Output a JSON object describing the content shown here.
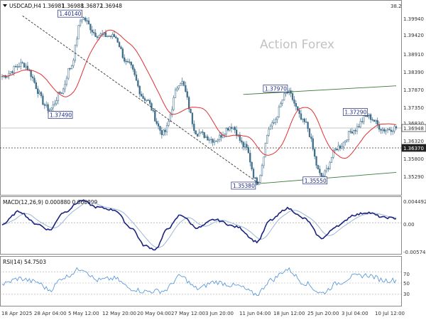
{
  "chart_data": [
    {
      "type": "candlestick",
      "title": "USDCAD,H4",
      "header_values": [
        "1.36981",
        "1.36988",
        "1.36872",
        "1.36948"
      ],
      "watermark": "Action Forex",
      "corner_value": "38.2",
      "price_ticks": [
        "1.39940",
        "1.39420",
        "1.38910",
        "1.38390",
        "1.37870",
        "1.37350",
        "1.36830",
        "1.36320",
        "1.35800",
        "1.35290"
      ],
      "price_ticks_mirror": [
        "1.39940",
        "1.39420",
        "1.38910",
        "1.38390",
        "1.37870",
        "1.37350",
        "1.36830",
        "1.36320",
        "1.35800",
        "1.35290"
      ],
      "ylim": [
        1.3505,
        1.4035
      ],
      "current_price": "1.36948",
      "current_price_value": 1.36948,
      "hline_label": "1.36370",
      "hline_value": 1.3637,
      "annotations": [
        {
          "text": "1.40140",
          "value": 1.4014,
          "bar": 47
        },
        {
          "text": "1.37490",
          "value": 1.3749,
          "bar": 28
        },
        {
          "text": "1.37970",
          "value": 1.3797,
          "bar": 168
        },
        {
          "text": "1.37290",
          "value": 1.3729,
          "bar": 215
        },
        {
          "text": "1.35380",
          "value": 1.3538,
          "bar": 150
        },
        {
          "text": "1.35550",
          "value": 1.3555,
          "bar": 188
        }
      ],
      "trendlines": [
        {
          "name": "upper channel",
          "from": {
            "bar": 142,
            "value": 1.3792
          },
          "to": {
            "bar": 232,
            "value": 1.3817
          }
        },
        {
          "name": "lower channel",
          "from": {
            "bar": 152,
            "value": 1.3534
          },
          "to": {
            "bar": 232,
            "value": 1.3566
          }
        },
        {
          "name": "falling trendline",
          "from": {
            "bar": 12,
            "value": 1.402
          },
          "to": {
            "bar": 152,
            "value": 1.3531
          }
        }
      ],
      "anchor_points": [
        {
          "bar": 0,
          "value": 1.3845
        },
        {
          "bar": 12,
          "value": 1.388
        },
        {
          "bar": 28,
          "value": 1.3749
        },
        {
          "bar": 35,
          "value": 1.38
        },
        {
          "bar": 40,
          "value": 1.387
        },
        {
          "bar": 47,
          "value": 1.4014
        },
        {
          "bar": 56,
          "value": 1.3965
        },
        {
          "bar": 66,
          "value": 1.396
        },
        {
          "bar": 74,
          "value": 1.388
        },
        {
          "bar": 84,
          "value": 1.378
        },
        {
          "bar": 95,
          "value": 1.368
        },
        {
          "bar": 105,
          "value": 1.383
        },
        {
          "bar": 115,
          "value": 1.368
        },
        {
          "bar": 125,
          "value": 1.366
        },
        {
          "bar": 135,
          "value": 1.37
        },
        {
          "bar": 143,
          "value": 1.364
        },
        {
          "bar": 150,
          "value": 1.3538
        },
        {
          "bar": 158,
          "value": 1.37
        },
        {
          "bar": 168,
          "value": 1.3797
        },
        {
          "bar": 178,
          "value": 1.371
        },
        {
          "bar": 188,
          "value": 1.3555
        },
        {
          "bar": 198,
          "value": 1.364
        },
        {
          "bar": 207,
          "value": 1.369
        },
        {
          "bar": 215,
          "value": 1.3729
        },
        {
          "bar": 225,
          "value": 1.369
        },
        {
          "bar": 232,
          "value": 1.3695
        }
      ],
      "moving_average_color": "#e0302f",
      "candle_color": "#3f6f8c",
      "x_labels": [
        "18 Apr 2025",
        "28 Apr 04:00",
        "5 May 12:00",
        "12 May 20:00",
        "20 May 04:00",
        "27 May 12:00",
        "3 Jun 20:00",
        "11 Jun 04:00",
        "18 Jun 12:00",
        "25 Jun 20:00",
        "3 Jul 04:00",
        "10 Jul 12:00"
      ]
    },
    {
      "type": "line",
      "title": "MACD(12,26,9) 0.000880 0.000899",
      "ticks": [
        "0.004492",
        "0.00",
        "-0.005748"
      ],
      "ylim": [
        -0.0058,
        0.0046
      ],
      "colors": {
        "macd": "#1a237e",
        "signal": "#9bb7d6"
      },
      "anchor_points": [
        {
          "bar": 0,
          "value": -0.0003
        },
        {
          "bar": 10,
          "value": 0.0022
        },
        {
          "bar": 20,
          "value": -0.0002
        },
        {
          "bar": 28,
          "value": -0.0014
        },
        {
          "bar": 36,
          "value": 0.002
        },
        {
          "bar": 47,
          "value": 0.0043
        },
        {
          "bar": 56,
          "value": 0.003
        },
        {
          "bar": 66,
          "value": 0.0025
        },
        {
          "bar": 76,
          "value": -0.001
        },
        {
          "bar": 84,
          "value": -0.0045
        },
        {
          "bar": 90,
          "value": -0.0052
        },
        {
          "bar": 98,
          "value": -0.001
        },
        {
          "bar": 105,
          "value": 0.0015
        },
        {
          "bar": 115,
          "value": -0.001
        },
        {
          "bar": 125,
          "value": 0.0006
        },
        {
          "bar": 138,
          "value": -0.0008
        },
        {
          "bar": 150,
          "value": -0.0037
        },
        {
          "bar": 158,
          "value": 0.0005
        },
        {
          "bar": 168,
          "value": 0.0028
        },
        {
          "bar": 178,
          "value": 0.0008
        },
        {
          "bar": 188,
          "value": -0.003
        },
        {
          "bar": 198,
          "value": -0.0005
        },
        {
          "bar": 207,
          "value": 0.0015
        },
        {
          "bar": 215,
          "value": 0.002
        },
        {
          "bar": 225,
          "value": 0.001
        },
        {
          "bar": 232,
          "value": 0.00088
        }
      ]
    },
    {
      "type": "line",
      "title": "RSI(14) 54.7503",
      "ticks": [
        "70",
        "50",
        "30"
      ],
      "ylim": [
        12,
        88
      ],
      "color": "#4a90d9",
      "anchor_points": [
        {
          "bar": 0,
          "value": 48
        },
        {
          "bar": 10,
          "value": 58
        },
        {
          "bar": 20,
          "value": 52
        },
        {
          "bar": 28,
          "value": 38
        },
        {
          "bar": 36,
          "value": 60
        },
        {
          "bar": 47,
          "value": 76
        },
        {
          "bar": 56,
          "value": 55
        },
        {
          "bar": 66,
          "value": 58
        },
        {
          "bar": 76,
          "value": 40
        },
        {
          "bar": 84,
          "value": 35
        },
        {
          "bar": 95,
          "value": 36
        },
        {
          "bar": 105,
          "value": 62
        },
        {
          "bar": 115,
          "value": 40
        },
        {
          "bar": 125,
          "value": 52
        },
        {
          "bar": 138,
          "value": 45
        },
        {
          "bar": 150,
          "value": 30
        },
        {
          "bar": 158,
          "value": 55
        },
        {
          "bar": 168,
          "value": 74
        },
        {
          "bar": 178,
          "value": 50
        },
        {
          "bar": 188,
          "value": 32
        },
        {
          "bar": 198,
          "value": 50
        },
        {
          "bar": 207,
          "value": 62
        },
        {
          "bar": 215,
          "value": 64
        },
        {
          "bar": 225,
          "value": 55
        },
        {
          "bar": 232,
          "value": 55
        }
      ]
    }
  ]
}
